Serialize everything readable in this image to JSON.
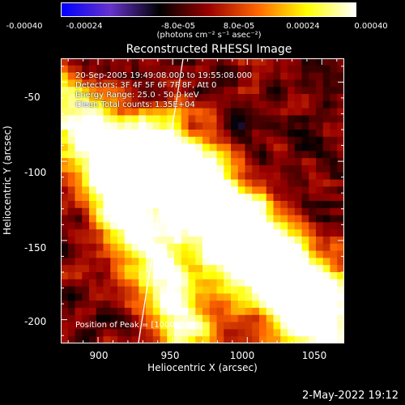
{
  "colorbar": {
    "tick_labels": [
      "-0.00040",
      "-0.00024",
      "-8.0e-05",
      "8.0e-05",
      "0.00024",
      "0.00040"
    ],
    "unit_label": "(photons cm⁻² s⁻¹ asec⁻²)",
    "colors": [
      "#0000ff",
      "#6633cc",
      "#000000",
      "#990000",
      "#ff6600",
      "#ffff00",
      "#ffffff"
    ]
  },
  "chart_data": {
    "type": "heatmap",
    "title": "Reconstructed RHESSI Image",
    "xlabel": "Heliocentric X (arcsec)",
    "ylabel": "Heliocentric Y (arcsec)",
    "xlim": [
      875,
      1065
    ],
    "ylim": [
      -215,
      -35
    ],
    "x_ticks": [
      900,
      950,
      1000,
      1050
    ],
    "y_ticks": [
      -50,
      -100,
      -150,
      -200
    ],
    "value_range": [
      -0.0004,
      0.0004
    ],
    "limb_line": [
      [
        927,
        -215
      ],
      [
        957,
        -35
      ]
    ],
    "peak_position": [
      1000,
      -165
    ]
  },
  "info": {
    "time_range": "20-Sep-2005 19:49:08.000 to 19:55:08.000",
    "detectors": "Detectors: 3F 4F 5F 6F 7F 8F, Att 0",
    "energy_range": "Energy Range: 25.0 - 50.0 keV",
    "clean_counts": "Clean     Total counts: 1.35E+04",
    "peak": "Position of Peak = [1000,-165]"
  },
  "footer": {
    "timestamp": "2-May-2022 19:12"
  }
}
